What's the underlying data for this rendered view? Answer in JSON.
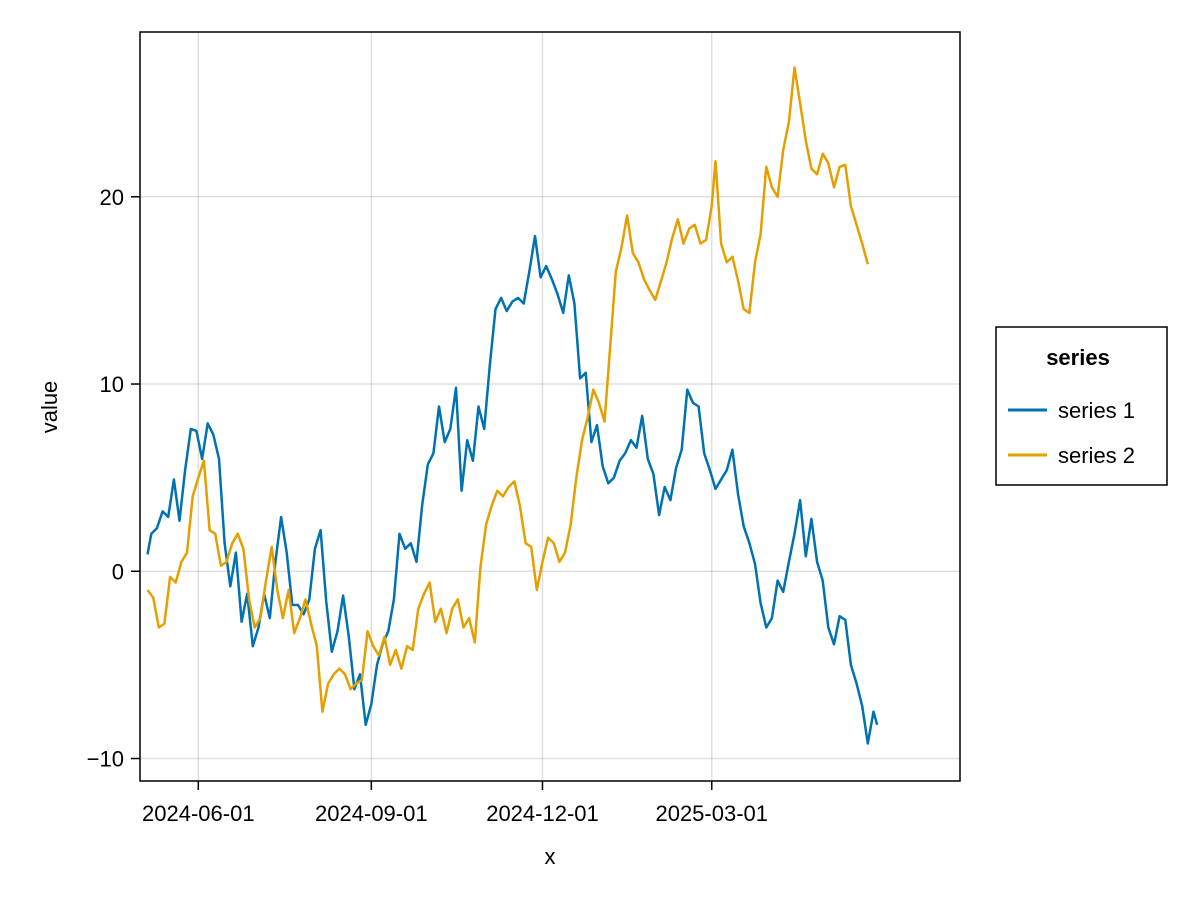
{
  "chart_data": {
    "type": "line",
    "title": "",
    "xlabel": "x",
    "ylabel": "value",
    "x_type": "date",
    "xlim": [
      "2024-05-01",
      "2025-07-11"
    ],
    "ylim": [
      -11.2,
      28.8
    ],
    "x_ticks": [
      "2024-06-01",
      "2024-09-01",
      "2024-12-01",
      "2025-03-01"
    ],
    "y_ticks": [
      -10,
      0,
      10,
      20
    ],
    "y_tick_labels": [
      "−10",
      "0",
      "10",
      "20"
    ],
    "grid": true,
    "legend": {
      "title": "series",
      "position": "right"
    },
    "colors": {
      "series 1": "#0072b2",
      "series 2": "#e69f00"
    },
    "series": [
      {
        "name": "series 1",
        "color": "#0072b2",
        "points": [
          [
            "2024-05-05",
            0.9
          ],
          [
            "2024-05-07",
            2.0
          ],
          [
            "2024-05-10",
            2.3
          ],
          [
            "2024-05-13",
            3.2
          ],
          [
            "2024-05-16",
            2.9
          ],
          [
            "2024-05-19",
            4.9
          ],
          [
            "2024-05-22",
            2.7
          ],
          [
            "2024-05-25",
            5.4
          ],
          [
            "2024-05-28",
            7.6
          ],
          [
            "2024-05-31",
            7.5
          ],
          [
            "2024-06-03",
            6.0
          ],
          [
            "2024-06-06",
            7.9
          ],
          [
            "2024-06-09",
            7.3
          ],
          [
            "2024-06-12",
            6.0
          ],
          [
            "2024-06-15",
            1.5
          ],
          [
            "2024-06-18",
            -0.8
          ],
          [
            "2024-06-21",
            1.0
          ],
          [
            "2024-06-24",
            -2.7
          ],
          [
            "2024-06-27",
            -1.2
          ],
          [
            "2024-06-30",
            -4.0
          ],
          [
            "2024-07-03",
            -3.0
          ],
          [
            "2024-07-06",
            -1.2
          ],
          [
            "2024-07-09",
            -2.5
          ],
          [
            "2024-07-12",
            0.5
          ],
          [
            "2024-07-15",
            2.9
          ],
          [
            "2024-07-18",
            1.0
          ],
          [
            "2024-07-21",
            -1.8
          ],
          [
            "2024-07-24",
            -1.8
          ],
          [
            "2024-07-27",
            -2.3
          ],
          [
            "2024-07-30",
            -1.5
          ],
          [
            "2024-08-02",
            1.2
          ],
          [
            "2024-08-05",
            2.2
          ],
          [
            "2024-08-08",
            -1.6
          ],
          [
            "2024-08-11",
            -4.3
          ],
          [
            "2024-08-14",
            -3.2
          ],
          [
            "2024-08-17",
            -1.3
          ],
          [
            "2024-08-20",
            -3.5
          ],
          [
            "2024-08-23",
            -6.3
          ],
          [
            "2024-08-26",
            -5.5
          ],
          [
            "2024-08-29",
            -8.2
          ],
          [
            "2024-09-01",
            -7.1
          ],
          [
            "2024-09-04",
            -5.0
          ],
          [
            "2024-09-07",
            -3.9
          ],
          [
            "2024-09-10",
            -3.2
          ],
          [
            "2024-09-13",
            -1.5
          ],
          [
            "2024-09-16",
            2.0
          ],
          [
            "2024-09-19",
            1.2
          ],
          [
            "2024-09-22",
            1.5
          ],
          [
            "2024-09-25",
            0.5
          ],
          [
            "2024-09-28",
            3.5
          ],
          [
            "2024-10-01",
            5.7
          ],
          [
            "2024-10-04",
            6.3
          ],
          [
            "2024-10-07",
            8.8
          ],
          [
            "2024-10-10",
            6.9
          ],
          [
            "2024-10-13",
            7.6
          ],
          [
            "2024-10-16",
            9.8
          ],
          [
            "2024-10-19",
            4.3
          ],
          [
            "2024-10-22",
            7.0
          ],
          [
            "2024-10-25",
            5.9
          ],
          [
            "2024-10-28",
            8.8
          ],
          [
            "2024-10-31",
            7.6
          ],
          [
            "2024-11-03",
            11.0
          ],
          [
            "2024-11-06",
            14.0
          ],
          [
            "2024-11-09",
            14.6
          ],
          [
            "2024-11-12",
            13.9
          ],
          [
            "2024-11-15",
            14.4
          ],
          [
            "2024-11-18",
            14.6
          ],
          [
            "2024-11-21",
            14.3
          ],
          [
            "2024-11-24",
            16.0
          ],
          [
            "2024-11-27",
            17.9
          ],
          [
            "2024-11-30",
            15.7
          ],
          [
            "2024-12-03",
            16.3
          ],
          [
            "2024-12-06",
            15.6
          ],
          [
            "2024-12-09",
            14.8
          ],
          [
            "2024-12-12",
            13.8
          ],
          [
            "2024-12-15",
            15.8
          ],
          [
            "2024-12-18",
            14.3
          ],
          [
            "2024-12-21",
            10.3
          ],
          [
            "2024-12-24",
            10.6
          ],
          [
            "2024-12-27",
            6.9
          ],
          [
            "2024-12-30",
            7.8
          ],
          [
            "2025-01-02",
            5.6
          ],
          [
            "2025-01-05",
            4.7
          ],
          [
            "2025-01-08",
            5.0
          ],
          [
            "2025-01-11",
            5.9
          ],
          [
            "2025-01-14",
            6.3
          ],
          [
            "2025-01-17",
            7.0
          ],
          [
            "2025-01-20",
            6.6
          ],
          [
            "2025-01-23",
            8.3
          ],
          [
            "2025-01-26",
            6.0
          ],
          [
            "2025-01-29",
            5.2
          ],
          [
            "2025-02-01",
            3.0
          ],
          [
            "2025-02-04",
            4.5
          ],
          [
            "2025-02-07",
            3.8
          ],
          [
            "2025-02-10",
            5.5
          ],
          [
            "2025-02-13",
            6.5
          ],
          [
            "2025-02-16",
            9.7
          ],
          [
            "2025-02-19",
            9.0
          ],
          [
            "2025-02-22",
            8.8
          ],
          [
            "2025-02-25",
            6.3
          ],
          [
            "2025-02-28",
            5.4
          ],
          [
            "2025-03-03",
            4.4
          ],
          [
            "2025-03-06",
            4.9
          ],
          [
            "2025-03-09",
            5.4
          ],
          [
            "2025-03-12",
            6.5
          ],
          [
            "2025-03-15",
            4.1
          ],
          [
            "2025-03-18",
            2.4
          ],
          [
            "2025-03-21",
            1.5
          ],
          [
            "2025-03-24",
            0.4
          ],
          [
            "2025-03-27",
            -1.7
          ],
          [
            "2025-03-30",
            -3.0
          ],
          [
            "2025-04-02",
            -2.5
          ],
          [
            "2025-04-05",
            -0.5
          ],
          [
            "2025-04-08",
            -1.1
          ],
          [
            "2025-04-11",
            0.5
          ],
          [
            "2025-04-14",
            2.0
          ],
          [
            "2025-04-17",
            3.8
          ],
          [
            "2025-04-20",
            0.8
          ],
          [
            "2025-04-23",
            2.8
          ],
          [
            "2025-04-26",
            0.5
          ],
          [
            "2025-04-29",
            -0.5
          ],
          [
            "2025-05-02",
            -3.0
          ],
          [
            "2025-05-05",
            -3.9
          ],
          [
            "2025-05-08",
            -2.4
          ],
          [
            "2025-05-11",
            -2.6
          ],
          [
            "2025-05-14",
            -5.0
          ],
          [
            "2025-05-17",
            -6.0
          ],
          [
            "2025-05-20",
            -7.2
          ],
          [
            "2025-05-23",
            -9.2
          ],
          [
            "2025-05-26",
            -7.5
          ],
          [
            "2025-05-28",
            -8.2
          ]
        ]
      },
      {
        "name": "series 2",
        "color": "#e69f00",
        "points": [
          [
            "2024-05-05",
            -1.0
          ],
          [
            "2024-05-08",
            -1.4
          ],
          [
            "2024-05-11",
            -3.0
          ],
          [
            "2024-05-14",
            -2.8
          ],
          [
            "2024-05-17",
            -0.3
          ],
          [
            "2024-05-20",
            -0.6
          ],
          [
            "2024-05-23",
            0.5
          ],
          [
            "2024-05-26",
            1.0
          ],
          [
            "2024-05-29",
            4.0
          ],
          [
            "2024-06-01",
            5.0
          ],
          [
            "2024-06-04",
            5.9
          ],
          [
            "2024-06-07",
            2.2
          ],
          [
            "2024-06-10",
            2.0
          ],
          [
            "2024-06-13",
            0.3
          ],
          [
            "2024-06-16",
            0.5
          ],
          [
            "2024-06-19",
            1.5
          ],
          [
            "2024-06-22",
            2.0
          ],
          [
            "2024-06-25",
            1.2
          ],
          [
            "2024-06-28",
            -1.5
          ],
          [
            "2024-07-01",
            -3.0
          ],
          [
            "2024-07-04",
            -2.5
          ],
          [
            "2024-07-07",
            -0.5
          ],
          [
            "2024-07-10",
            1.3
          ],
          [
            "2024-07-13",
            -1.0
          ],
          [
            "2024-07-16",
            -2.5
          ],
          [
            "2024-07-19",
            -1.0
          ],
          [
            "2024-07-22",
            -3.3
          ],
          [
            "2024-07-25",
            -2.5
          ],
          [
            "2024-07-28",
            -1.5
          ],
          [
            "2024-07-31",
            -2.8
          ],
          [
            "2024-08-03",
            -4.0
          ],
          [
            "2024-08-06",
            -7.5
          ],
          [
            "2024-08-09",
            -6.0
          ],
          [
            "2024-08-12",
            -5.5
          ],
          [
            "2024-08-15",
            -5.2
          ],
          [
            "2024-08-18",
            -5.5
          ],
          [
            "2024-08-21",
            -6.3
          ],
          [
            "2024-08-24",
            -6.0
          ],
          [
            "2024-08-27",
            -5.8
          ],
          [
            "2024-08-30",
            -3.2
          ],
          [
            "2024-09-02",
            -4.0
          ],
          [
            "2024-09-05",
            -4.5
          ],
          [
            "2024-09-08",
            -3.5
          ],
          [
            "2024-09-11",
            -5.0
          ],
          [
            "2024-09-14",
            -4.2
          ],
          [
            "2024-09-17",
            -5.2
          ],
          [
            "2024-09-20",
            -4.0
          ],
          [
            "2024-09-23",
            -4.2
          ],
          [
            "2024-09-26",
            -2.0
          ],
          [
            "2024-09-29",
            -1.2
          ],
          [
            "2024-10-02",
            -0.6
          ],
          [
            "2024-10-05",
            -2.7
          ],
          [
            "2024-10-08",
            -2.0
          ],
          [
            "2024-10-11",
            -3.3
          ],
          [
            "2024-10-14",
            -2.0
          ],
          [
            "2024-10-17",
            -1.5
          ],
          [
            "2024-10-20",
            -3.0
          ],
          [
            "2024-10-23",
            -2.5
          ],
          [
            "2024-10-26",
            -3.8
          ],
          [
            "2024-10-29",
            0.2
          ],
          [
            "2024-11-01",
            2.5
          ],
          [
            "2024-11-04",
            3.5
          ],
          [
            "2024-11-07",
            4.3
          ],
          [
            "2024-11-10",
            4.0
          ],
          [
            "2024-11-13",
            4.5
          ],
          [
            "2024-11-16",
            4.8
          ],
          [
            "2024-11-19",
            3.5
          ],
          [
            "2024-11-22",
            1.5
          ],
          [
            "2024-11-25",
            1.3
          ],
          [
            "2024-11-28",
            -1.0
          ],
          [
            "2024-12-01",
            0.5
          ],
          [
            "2024-12-04",
            1.8
          ],
          [
            "2024-12-07",
            1.5
          ],
          [
            "2024-12-10",
            0.5
          ],
          [
            "2024-12-13",
            1.0
          ],
          [
            "2024-12-16",
            2.5
          ],
          [
            "2024-12-19",
            5.0
          ],
          [
            "2024-12-22",
            7.0
          ],
          [
            "2024-12-25",
            8.2
          ],
          [
            "2024-12-28",
            9.7
          ],
          [
            "2024-12-31",
            9.0
          ],
          [
            "2025-01-03",
            8.0
          ],
          [
            "2025-01-06",
            12.0
          ],
          [
            "2025-01-09",
            16.0
          ],
          [
            "2025-01-12",
            17.3
          ],
          [
            "2025-01-15",
            19.0
          ],
          [
            "2025-01-18",
            17.0
          ],
          [
            "2025-01-21",
            16.5
          ],
          [
            "2025-01-24",
            15.6
          ],
          [
            "2025-01-27",
            15.0
          ],
          [
            "2025-01-30",
            14.5
          ],
          [
            "2025-02-02",
            15.5
          ],
          [
            "2025-02-05",
            16.5
          ],
          [
            "2025-02-08",
            17.8
          ],
          [
            "2025-02-11",
            18.8
          ],
          [
            "2025-02-14",
            17.5
          ],
          [
            "2025-02-17",
            18.3
          ],
          [
            "2025-02-20",
            18.5
          ],
          [
            "2025-02-23",
            17.5
          ],
          [
            "2025-02-26",
            17.7
          ],
          [
            "2025-03-01",
            19.5
          ],
          [
            "2025-03-03",
            21.9
          ],
          [
            "2025-03-06",
            17.5
          ],
          [
            "2025-03-09",
            16.5
          ],
          [
            "2025-03-12",
            16.8
          ],
          [
            "2025-03-15",
            15.5
          ],
          [
            "2025-03-18",
            14.0
          ],
          [
            "2025-03-21",
            13.8
          ],
          [
            "2025-03-24",
            16.5
          ],
          [
            "2025-03-27",
            18.0
          ],
          [
            "2025-03-30",
            21.6
          ],
          [
            "2025-04-02",
            20.5
          ],
          [
            "2025-04-05",
            20.0
          ],
          [
            "2025-04-08",
            22.5
          ],
          [
            "2025-04-11",
            24.0
          ],
          [
            "2025-04-14",
            26.9
          ],
          [
            "2025-04-17",
            25.0
          ],
          [
            "2025-04-20",
            23.0
          ],
          [
            "2025-04-23",
            21.5
          ],
          [
            "2025-04-26",
            21.2
          ],
          [
            "2025-04-29",
            22.3
          ],
          [
            "2025-05-02",
            21.8
          ],
          [
            "2025-05-05",
            20.5
          ],
          [
            "2025-05-08",
            21.6
          ],
          [
            "2025-05-11",
            21.7
          ],
          [
            "2025-05-14",
            19.5
          ],
          [
            "2025-05-17",
            18.5
          ],
          [
            "2025-05-20",
            17.5
          ],
          [
            "2025-05-23",
            16.4
          ]
        ]
      }
    ]
  }
}
